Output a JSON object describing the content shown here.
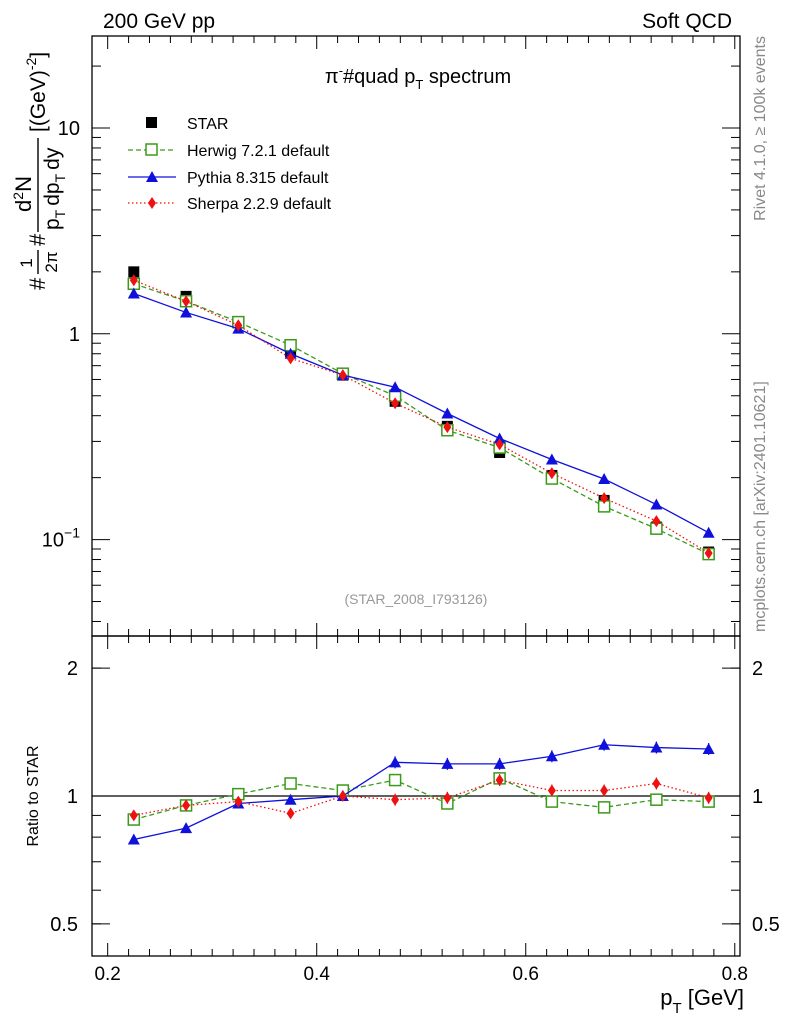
{
  "header": {
    "left": "200 GeV pp",
    "right": "Soft QCD",
    "side_top": "Rivet 4.1.0, ≥ 100k events",
    "side_bottom": "mcplots.cern.ch [arXiv:2401.10621]",
    "analysis_tag": "(STAR_2008_I793126)"
  },
  "colors": {
    "star": "#000000",
    "herwig": "#3a9a1a",
    "pythia": "#1010dd",
    "sherpa": "#ee1111"
  },
  "chart_data": [
    {
      "type": "line",
      "scale_y": "log",
      "title_parts": [
        "π",
        "-",
        "#quad p",
        "T",
        " spectrum"
      ],
      "ylabel": "#1/2π #d²N/p_T dp_T dy [(GeV)^-2]",
      "ylabel_parts": {
        "hash1": "#",
        "one": "1",
        "twopi": "2π",
        "hash2": "#",
        "d2n_d": "d",
        "d2n_exp": "2",
        "d2n_n": "N",
        "den_p": "p",
        "den_t1": "T",
        "den_dp": "dp",
        "den_t2": "T",
        "den_dy": "dy",
        "units_open": "[(GeV)",
        "units_exp": "-2",
        "units_close": "]"
      },
      "xlim": [
        0.185,
        0.805
      ],
      "ylim": [
        0.034,
        28
      ],
      "yticks_major": [
        {
          "value": 10,
          "label": "10"
        },
        {
          "value": 1,
          "label": "1"
        },
        {
          "value": 0.1,
          "label_base": "10",
          "label_exp": "−1"
        }
      ],
      "x": [
        0.225,
        0.275,
        0.325,
        0.375,
        0.425,
        0.475,
        0.525,
        0.575,
        0.625,
        0.675,
        0.725,
        0.775
      ],
      "series": [
        {
          "name": "STAR",
          "key": "star",
          "marker": "square-filled",
          "line": "none",
          "values": [
            2.0,
            1.52,
            1.13,
            0.82,
            0.63,
            0.47,
            0.355,
            0.265,
            0.205,
            0.155,
            0.115,
            0.087
          ]
        },
        {
          "name": "Herwig 7.2.1 default",
          "key": "herwig",
          "marker": "square-open",
          "line": "dashed",
          "values": [
            1.75,
            1.44,
            1.14,
            0.88,
            0.64,
            0.5,
            0.34,
            0.28,
            0.198,
            0.145,
            0.113,
            0.085
          ]
        },
        {
          "name": "Pythia 8.315 default",
          "key": "pythia",
          "marker": "triangle",
          "line": "solid",
          "values": [
            1.57,
            1.27,
            1.06,
            0.8,
            0.63,
            0.55,
            0.41,
            0.31,
            0.245,
            0.197,
            0.148,
            0.108
          ]
        },
        {
          "name": "Sherpa 2.2.9 default",
          "key": "sherpa",
          "marker": "diamond",
          "line": "dotted",
          "values": [
            1.82,
            1.44,
            1.1,
            0.76,
            0.63,
            0.46,
            0.352,
            0.29,
            0.21,
            0.159,
            0.123,
            0.086
          ]
        }
      ]
    },
    {
      "type": "line",
      "scale_y": "log",
      "ylabel": "Ratio to STAR",
      "xlabel_parts": {
        "p": "p",
        "sub": "T",
        "units": " [GeV]"
      },
      "xlim": [
        0.185,
        0.805
      ],
      "ylim": [
        0.42,
        2.38
      ],
      "xticks": [
        {
          "value": 0.2,
          "label": "0.2"
        },
        {
          "value": 0.4,
          "label": "0.4"
        },
        {
          "value": 0.6,
          "label": "0.6"
        },
        {
          "value": 0.8,
          "label": "0.8"
        }
      ],
      "yticks_major": [
        {
          "value": 2,
          "label": "2"
        },
        {
          "value": 1,
          "label": "1"
        },
        {
          "value": 0.5,
          "label": "0.5"
        }
      ],
      "x": [
        0.225,
        0.275,
        0.325,
        0.375,
        0.425,
        0.475,
        0.525,
        0.575,
        0.625,
        0.675,
        0.725,
        0.775
      ],
      "series": [
        {
          "name": "Herwig 7.2.1 default",
          "key": "herwig",
          "marker": "square-open",
          "line": "dashed",
          "values": [
            0.88,
            0.95,
            1.01,
            1.07,
            1.03,
            1.09,
            0.96,
            1.1,
            0.97,
            0.94,
            0.98,
            0.97
          ]
        },
        {
          "name": "Pythia 8.315 default",
          "key": "pythia",
          "marker": "triangle",
          "line": "solid",
          "values": [
            0.79,
            0.84,
            0.96,
            0.98,
            1.0,
            1.2,
            1.19,
            1.19,
            1.24,
            1.32,
            1.3,
            1.29
          ]
        },
        {
          "name": "Sherpa 2.2.9 default",
          "key": "sherpa",
          "marker": "diamond",
          "line": "dotted",
          "values": [
            0.9,
            0.95,
            0.97,
            0.91,
            1.0,
            0.98,
            0.99,
            1.09,
            1.03,
            1.03,
            1.07,
            0.99
          ]
        }
      ]
    }
  ]
}
